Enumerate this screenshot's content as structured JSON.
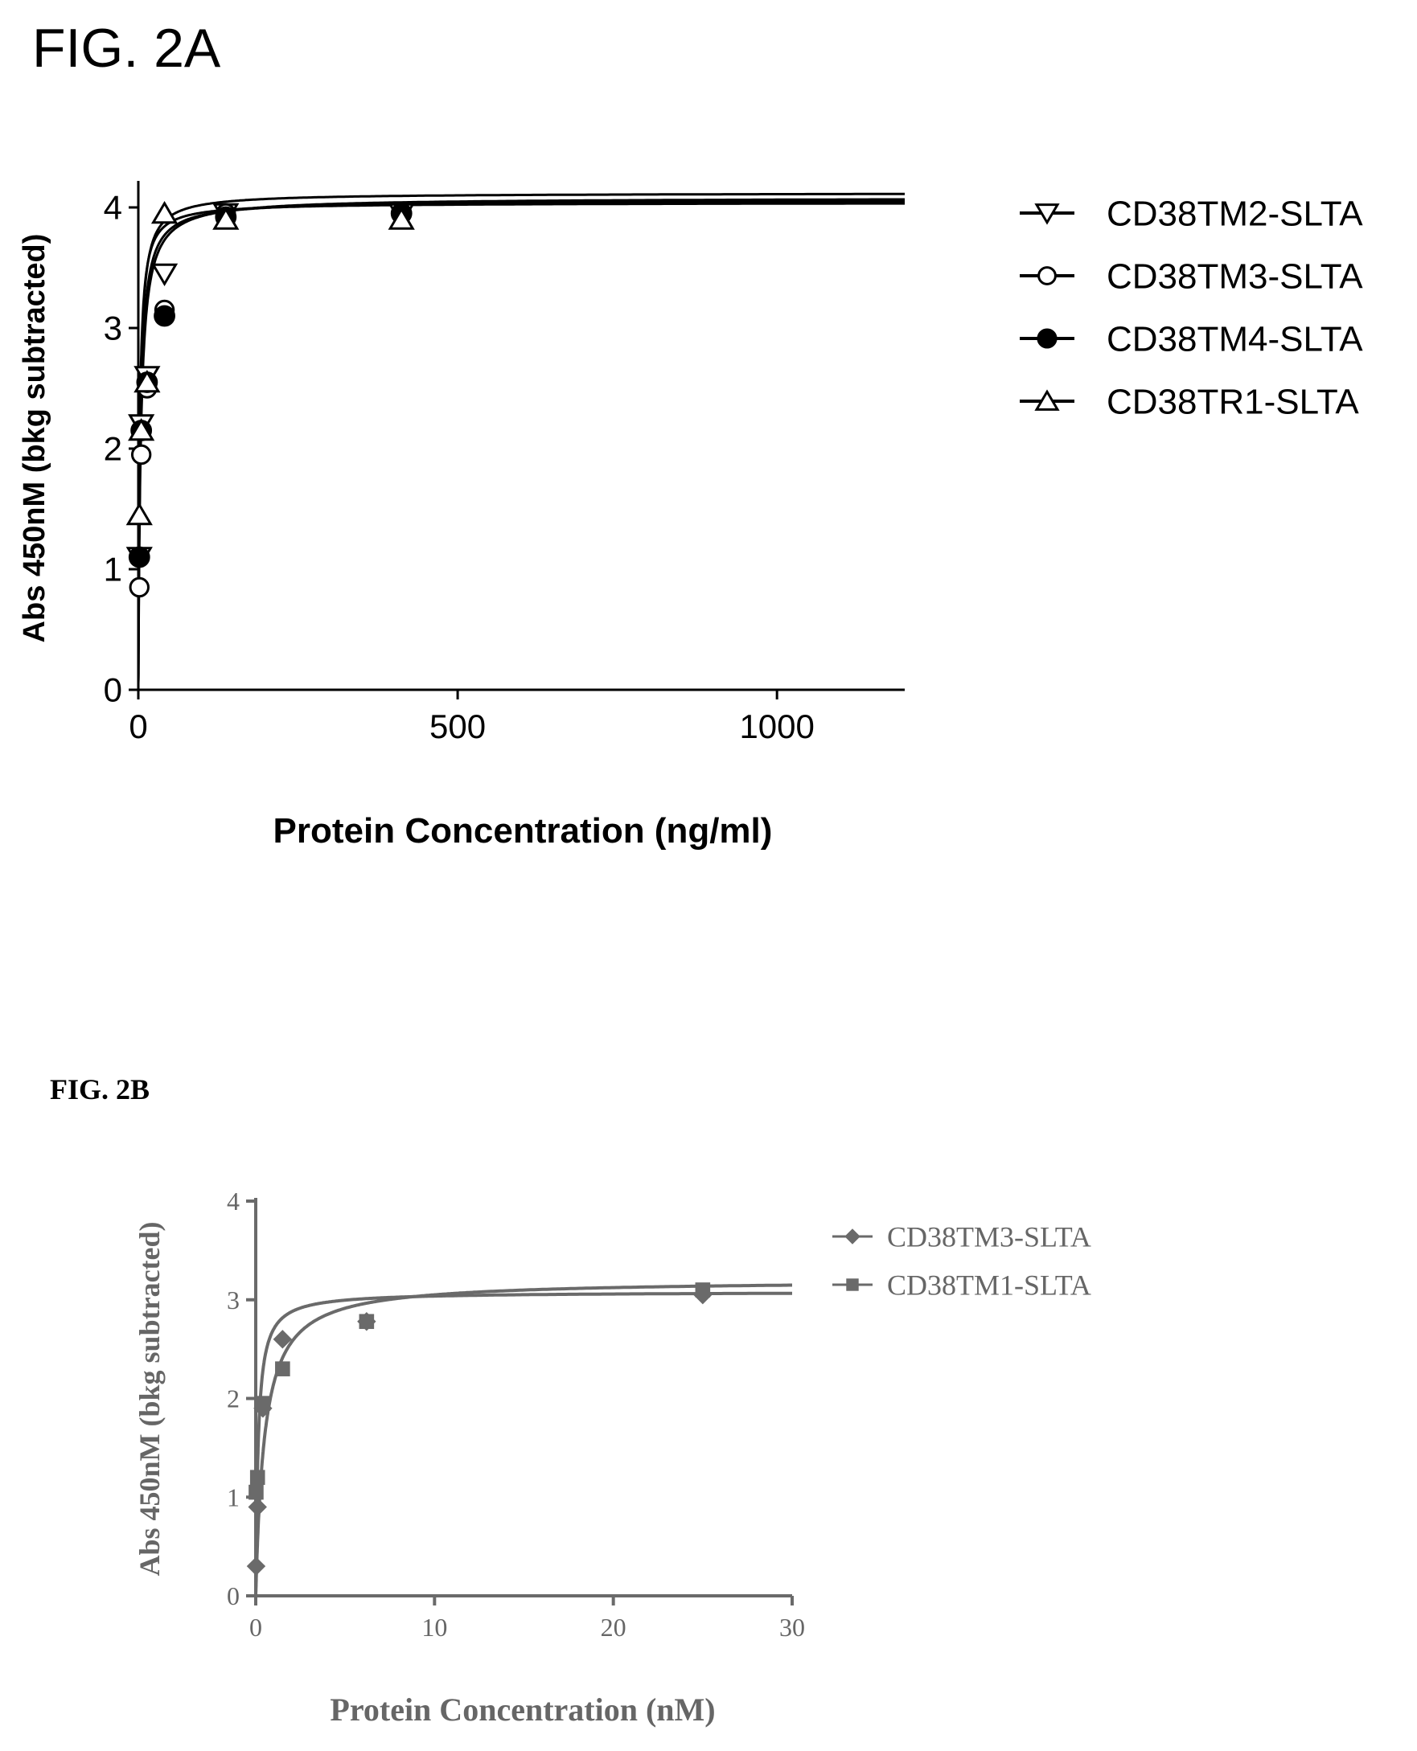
{
  "figure_a_label": "FIG. 2A",
  "figure_b_label": "FIG. 2B",
  "chart_data": [
    {
      "type": "scatter",
      "title": "",
      "xlabel": "Protein Concentration (ng/ml)",
      "ylabel": "Abs 450nM (bkg subtracted)",
      "xlim": [
        0,
        1200
      ],
      "ylim": [
        0,
        4
      ],
      "x_ticks": [
        "0",
        "500",
        "1000"
      ],
      "y_ticks": [
        "0",
        "1",
        "2",
        "3",
        "4"
      ],
      "grid": false,
      "legend_position": "right",
      "series": [
        {
          "name": "CD38TM2-SLTA",
          "marker": "triangle-down",
          "color": "#000000",
          "points": [
            [
              1.6,
              1.1
            ],
            [
              4.6,
              2.2
            ],
            [
              13.7,
              2.6
            ],
            [
              41,
              3.45
            ],
            [
              137,
              3.95
            ],
            [
              412,
              3.95
            ]
          ],
          "fit": {
            "top": 4.12,
            "ec50": 7
          }
        },
        {
          "name": "CD38TM3-SLTA",
          "marker": "circle-open",
          "color": "#000000",
          "points": [
            [
              1.6,
              0.85
            ],
            [
              4.6,
              1.95
            ],
            [
              13.7,
              2.5
            ],
            [
              41,
              3.15
            ],
            [
              137,
              3.95
            ],
            [
              412,
              3.95
            ]
          ],
          "fit": {
            "top": 4.08,
            "ec50": 11
          }
        },
        {
          "name": "CD38TM4-SLTA",
          "marker": "circle-filled",
          "color": "#000000",
          "points": [
            [
              1.6,
              1.1
            ],
            [
              4.6,
              2.15
            ],
            [
              13.7,
              2.55
            ],
            [
              41,
              3.1
            ],
            [
              137,
              3.92
            ],
            [
              412,
              3.95
            ]
          ],
          "fit": {
            "top": 4.06,
            "ec50": 9
          }
        },
        {
          "name": "CD38TR1-SLTA",
          "marker": "triangle-up",
          "color": "#000000",
          "points": [
            [
              1.6,
              1.45
            ],
            [
              4.6,
              2.15
            ],
            [
              13.7,
              2.55
            ],
            [
              41,
              3.95
            ],
            [
              137,
              3.9
            ],
            [
              412,
              3.9
            ]
          ],
          "fit": {
            "top": 4.04,
            "ec50": 6
          }
        }
      ]
    },
    {
      "type": "scatter",
      "title": "",
      "xlabel": "Protein Concentration (nM)",
      "ylabel": "Abs 450nM (bkg subtracted)",
      "xlim": [
        0,
        30
      ],
      "ylim": [
        0,
        4
      ],
      "x_ticks": [
        "0",
        "10",
        "20",
        "30"
      ],
      "y_ticks": [
        "0",
        "1",
        "2",
        "3",
        "4"
      ],
      "grid": false,
      "legend_position": "top-right",
      "series": [
        {
          "name": "CD38TM3-SLTA",
          "marker": "diamond",
          "color": "#6a6a6a",
          "points": [
            [
              0.02,
              0.3
            ],
            [
              0.1,
              0.9
            ],
            [
              0.4,
              1.9
            ],
            [
              1.5,
              2.6
            ],
            [
              6.2,
              2.78
            ],
            [
              25,
              3.05
            ]
          ],
          "fit": {
            "top": 3.08,
            "ec50": 0.4
          }
        },
        {
          "name": "CD38TM1-SLTA",
          "marker": "square",
          "color": "#6a6a6a",
          "points": [
            [
              0.02,
              1.05
            ],
            [
              0.1,
              1.2
            ],
            [
              0.4,
              1.95
            ],
            [
              1.5,
              2.3
            ],
            [
              6.2,
              2.78
            ],
            [
              25,
              3.1
            ]
          ],
          "fit": {
            "top": 3.2,
            "ec50": 1.4
          }
        }
      ]
    }
  ]
}
